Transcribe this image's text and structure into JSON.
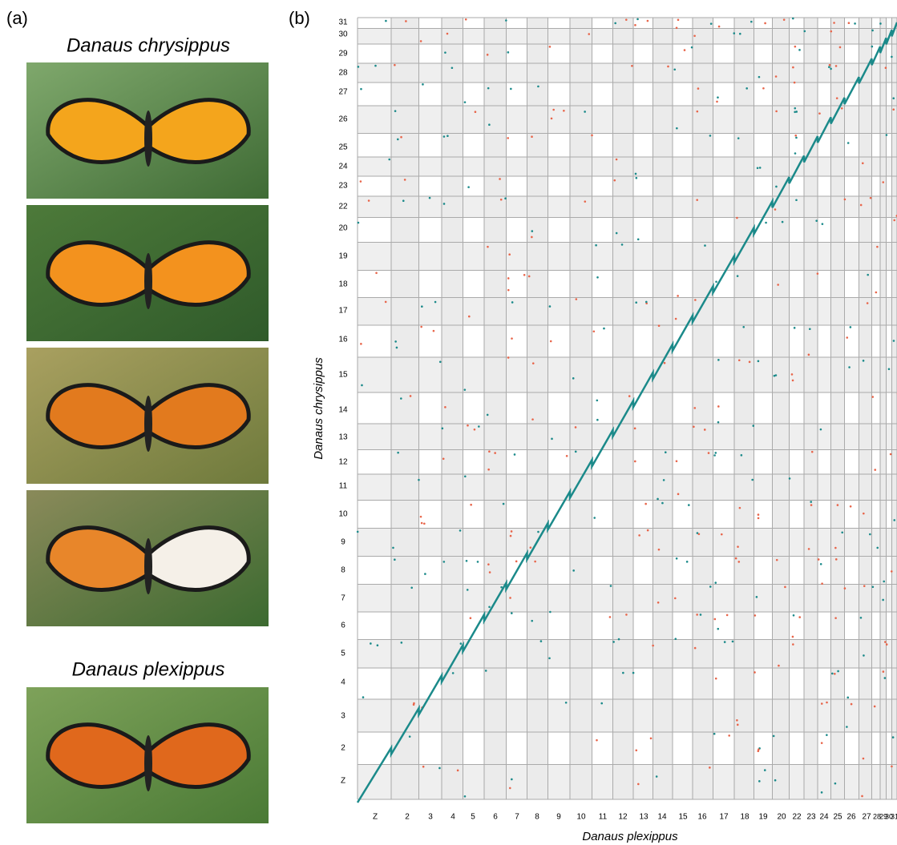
{
  "panel_a": {
    "label": "(a)",
    "title_top": "Danaus chrysippus",
    "title_bottom": "Danaus plexippus"
  },
  "panel_b": {
    "label": "(b)",
    "x_axis_label": "Danaus plexippus",
    "y_axis_label": "Danaus chrysippus",
    "x_chromosomes": [
      "Z",
      "2",
      "3",
      "4",
      "5",
      "6",
      "7",
      "8",
      "9",
      "10",
      "11",
      "12",
      "13",
      "14",
      "15",
      "16",
      "17",
      "18",
      "19",
      "20",
      "22",
      "23",
      "24",
      "25",
      "26",
      "27",
      "28",
      "29",
      "30",
      "31"
    ],
    "y_chromosomes": [
      "31",
      "30",
      "29",
      "28",
      "27",
      "26",
      "25",
      "24",
      "23",
      "22",
      "20",
      "19",
      "18",
      "17",
      "16",
      "15",
      "14",
      "13",
      "12",
      "11",
      "10",
      "9",
      "8",
      "7",
      "6",
      "5",
      "4",
      "3",
      "2",
      "Z"
    ]
  }
}
